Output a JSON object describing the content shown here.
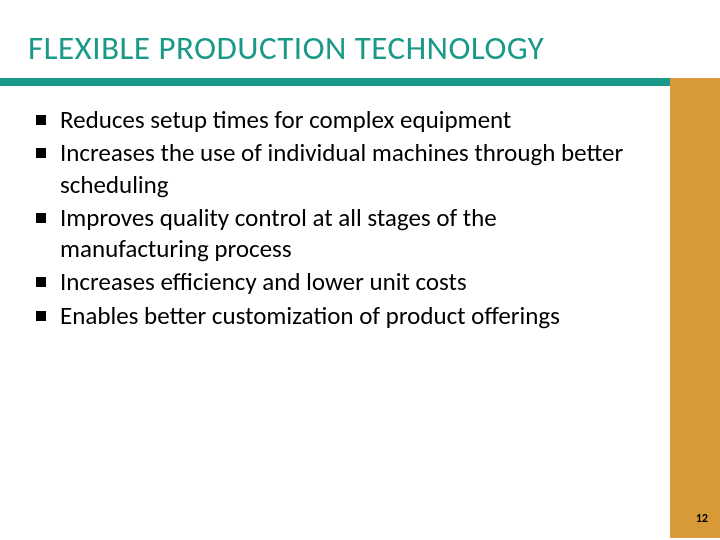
{
  "slide": {
    "title": "FLEXIBLE PRODUCTION TECHNOLOGY",
    "title_color": "#1a9988",
    "title_fontsize": 33,
    "accent_bar_color": "#1a9988",
    "side_bar_color": "#d89938",
    "background_color": "#ffffff",
    "bullets": [
      "Reduces setup times for complex equipment",
      "Increases the use of individual machines through better scheduling",
      "Improves quality control at all stages of the manufacturing process",
      "Increases efficiency and lower unit costs",
      "Enables better customization of product offerings"
    ],
    "bullet_marker_color": "#000000",
    "bullet_fontsize": 25,
    "page_number": "12"
  }
}
